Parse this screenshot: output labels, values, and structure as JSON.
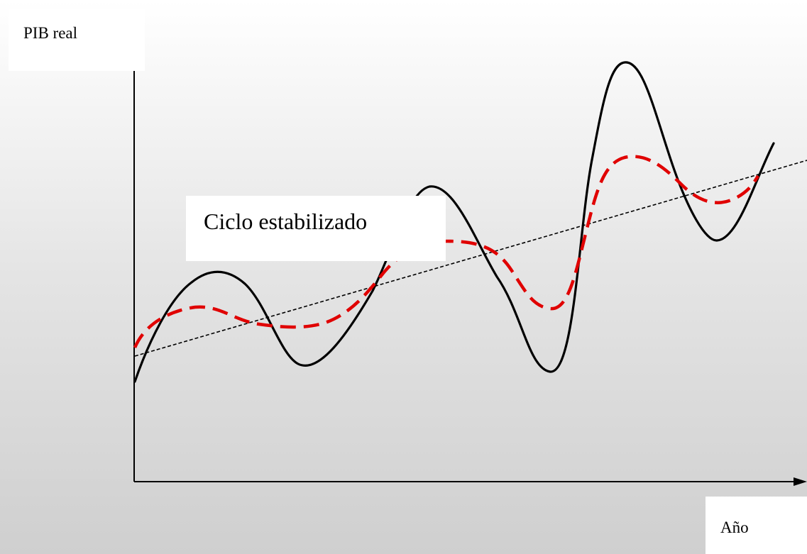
{
  "ylabel": "PIB real",
  "xlabel": "Año",
  "annotation": "Ciclo estabilizado",
  "curves": [
    {
      "role": "actual-cycle",
      "color": "#000000",
      "dash": "solid"
    },
    {
      "role": "stabilized-cycle",
      "color": "#e00000",
      "dash": "dashed"
    },
    {
      "role": "trend",
      "color": "#000000",
      "dash": "dotted"
    }
  ]
}
